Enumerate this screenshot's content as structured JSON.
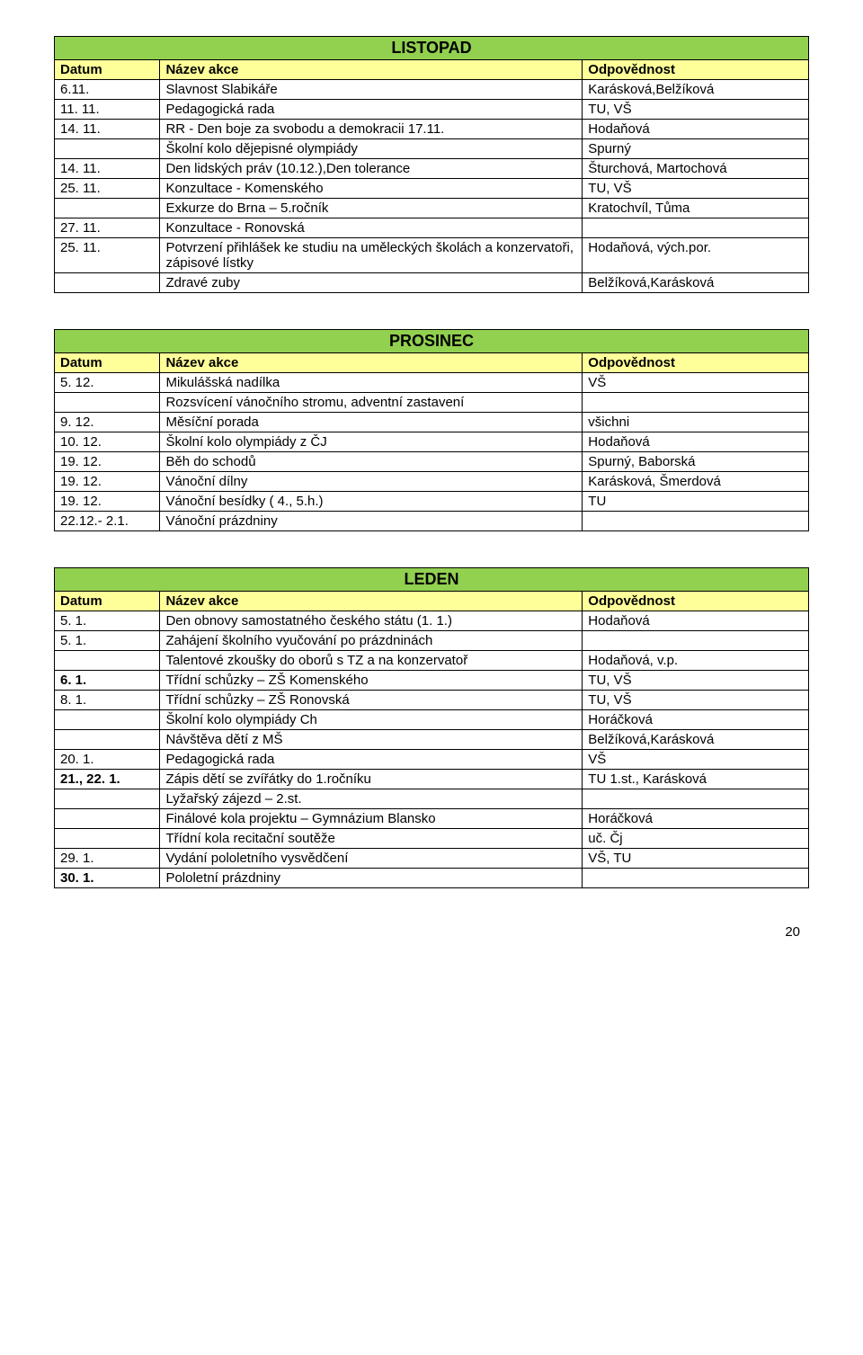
{
  "columns": {
    "date": "Datum",
    "name": "Název akce",
    "resp": "Odpovědnost"
  },
  "colors": {
    "title_bg": "#92d050",
    "header_bg": "#ffff99",
    "border": "#000000",
    "text": "#000000"
  },
  "tables": [
    {
      "title": "LISTOPAD",
      "rows": [
        {
          "date": "6.11.",
          "name": "Slavnost Slabikáře",
          "resp": "Karásková,Belžíková"
        },
        {
          "date": "11. 11.",
          "name": "Pedagogická rada",
          "resp": "TU, VŠ"
        },
        {
          "date": "14. 11.",
          "name": "RR - Den boje za svobodu a demokracii 17.11.",
          "resp": "Hodaňová"
        },
        {
          "date": "",
          "name": "Školní kolo dějepisné olympiády",
          "resp": "Spurný"
        },
        {
          "date": "14. 11.",
          "name": "Den lidských práv (10.12.),Den tolerance",
          "resp": "Šturchová, Martochová"
        },
        {
          "date": "25. 11.",
          "name": "Konzultace -  Komenského",
          "resp": "TU, VŠ"
        },
        {
          "date": "",
          "name": "Exkurze do Brna – 5.ročník",
          "resp": "Kratochvíl, Tůma"
        },
        {
          "date": "27. 11.",
          "name": "Konzultace -  Ronovská",
          "resp": ""
        },
        {
          "date": "25. 11.",
          "name": "Potvrzení přihlášek ke studiu na uměleckých školách a konzervatoři, zápisové lístky",
          "resp": "Hodaňová, vých.por."
        },
        {
          "date": "",
          "name": "Zdravé zuby",
          "resp": "Belžíková,Karásková"
        }
      ]
    },
    {
      "title": "PROSINEC",
      "rows": [
        {
          "date": " 5. 12.",
          "name": "Mikulášská nadílka",
          "resp": "VŠ"
        },
        {
          "date": "",
          "name": "Rozsvícení vánočního stromu, adventní zastavení",
          "resp": ""
        },
        {
          "date": " 9. 12.",
          "name": "Měsíční porada",
          "resp": "všichni"
        },
        {
          "date": "10. 12.",
          "name": "Školní kolo olympiády z ČJ",
          "resp": "Hodaňová"
        },
        {
          "date": "19. 12.",
          "name": "Běh do schodů",
          "resp": "Spurný, Baborská"
        },
        {
          "date": "19. 12.",
          "name": "Vánoční dílny",
          "resp": "Karásková, Šmerdová"
        },
        {
          "date": "19. 12.",
          "name": "Vánoční besídky ( 4., 5.h.)",
          "resp": "TU"
        },
        {
          "date": "22.12.- 2.1.",
          "name": "Vánoční prázdniny",
          "resp": ""
        }
      ]
    },
    {
      "title": "LEDEN",
      "rows": [
        {
          "date": " 5. 1.",
          "name": "Den obnovy samostatného českého státu (1. 1.)",
          "resp": "Hodaňová"
        },
        {
          "date": " 5. 1.",
          "name": "Zahájení školního vyučování po prázdninách",
          "resp": ""
        },
        {
          "date": "",
          "name": "Talentové zkoušky do oborů s TZ a na konzervatoř",
          "resp": "Hodaňová, v.p."
        },
        {
          "date": " 6. 1.",
          "date_bold": true,
          "name": "Třídní schůzky – ZŠ Komenského",
          "resp": "TU, VŠ"
        },
        {
          "date": " 8. 1.",
          "name": "Třídní schůzky – ZŠ Ronovská",
          "resp": "TU, VŠ"
        },
        {
          "date": "",
          "name": "Školní kolo olympiády Ch",
          "resp": "Horáčková"
        },
        {
          "date": "",
          "name": "Návštěva dětí z MŠ",
          "resp": "Belžíková,Karásková"
        },
        {
          "date": "20. 1.",
          "name": "Pedagogická rada",
          "resp": "VŠ"
        },
        {
          "date": "21., 22. 1.",
          "date_bold": true,
          "name": "Zápis dětí se zvířátky do 1.ročníku",
          "resp": "TU 1.st., Karásková"
        },
        {
          "date": "",
          "name": "Lyžařský zájezd – 2.st.",
          "resp": ""
        },
        {
          "date": "",
          "name": "Finálové kola projektu – Gymnázium Blansko",
          "resp": "Horáčková"
        },
        {
          "date": "",
          "name": "Třídní kola recitační soutěže",
          "resp": "uč. Čj"
        },
        {
          "date": "29. 1.",
          "name": "Vydání pololetního vysvědčení",
          "resp": "VŠ, TU"
        },
        {
          "date": "30. 1.",
          "date_bold": true,
          "name": "Pololetní prázdniny",
          "resp": ""
        }
      ]
    }
  ],
  "page_number": "20"
}
